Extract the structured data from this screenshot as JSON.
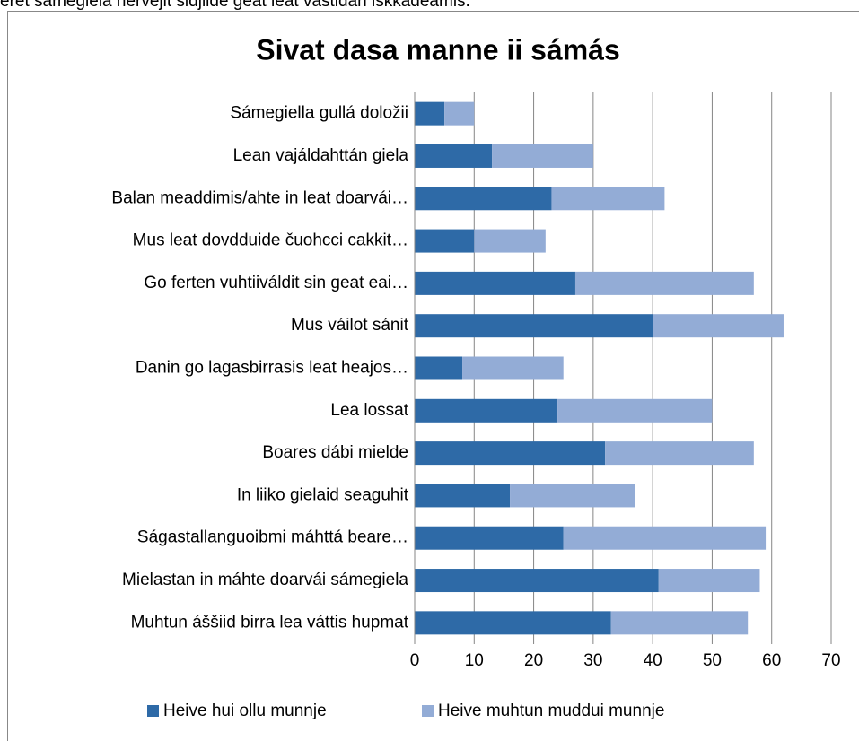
{
  "caption": "eret sámegiela hervejit sidjiide geat leat vástidan iskkadeamis.",
  "chart_data": {
    "type": "stacked_bar_horizontal",
    "title": "Sivat dasa manne ii sámás",
    "categories": [
      "Sámegiella gullá doložii",
      "Lean vajáldahttán giela",
      "Balan meaddimis/ahte in leat doarvái…",
      "Mus leat dovdduide čuohcci cakkit…",
      "Go ferten vuhtiiváldit sin geat eai…",
      "Mus váilot sánit",
      "Danin go lagasbirrasis leat heajos…",
      "Lea lossat",
      "Boares dábi mielde",
      "In liiko gielaid seaguhit",
      "Ságastallanguoibmi máhttá beare…",
      "Mielastan in máhte doarvái sámegiela",
      "Muhtun áššiid birra lea váttis hupmat"
    ],
    "series": [
      {
        "name": "Heive hui ollu munnje",
        "color": "#2e6aa7",
        "values": [
          5,
          13,
          23,
          10,
          27,
          40,
          8,
          24,
          32,
          16,
          25,
          41,
          33
        ]
      },
      {
        "name": "Heive muhtun muddui munnje",
        "color": "#93acd6",
        "values": [
          5,
          17,
          19,
          12,
          30,
          22,
          17,
          26,
          25,
          21,
          34,
          17,
          23
        ]
      }
    ],
    "xlim": [
      0,
      70
    ],
    "xticks": [
      0,
      10,
      20,
      30,
      40,
      50,
      60,
      70
    ],
    "grid": true,
    "legend": "bottom"
  }
}
